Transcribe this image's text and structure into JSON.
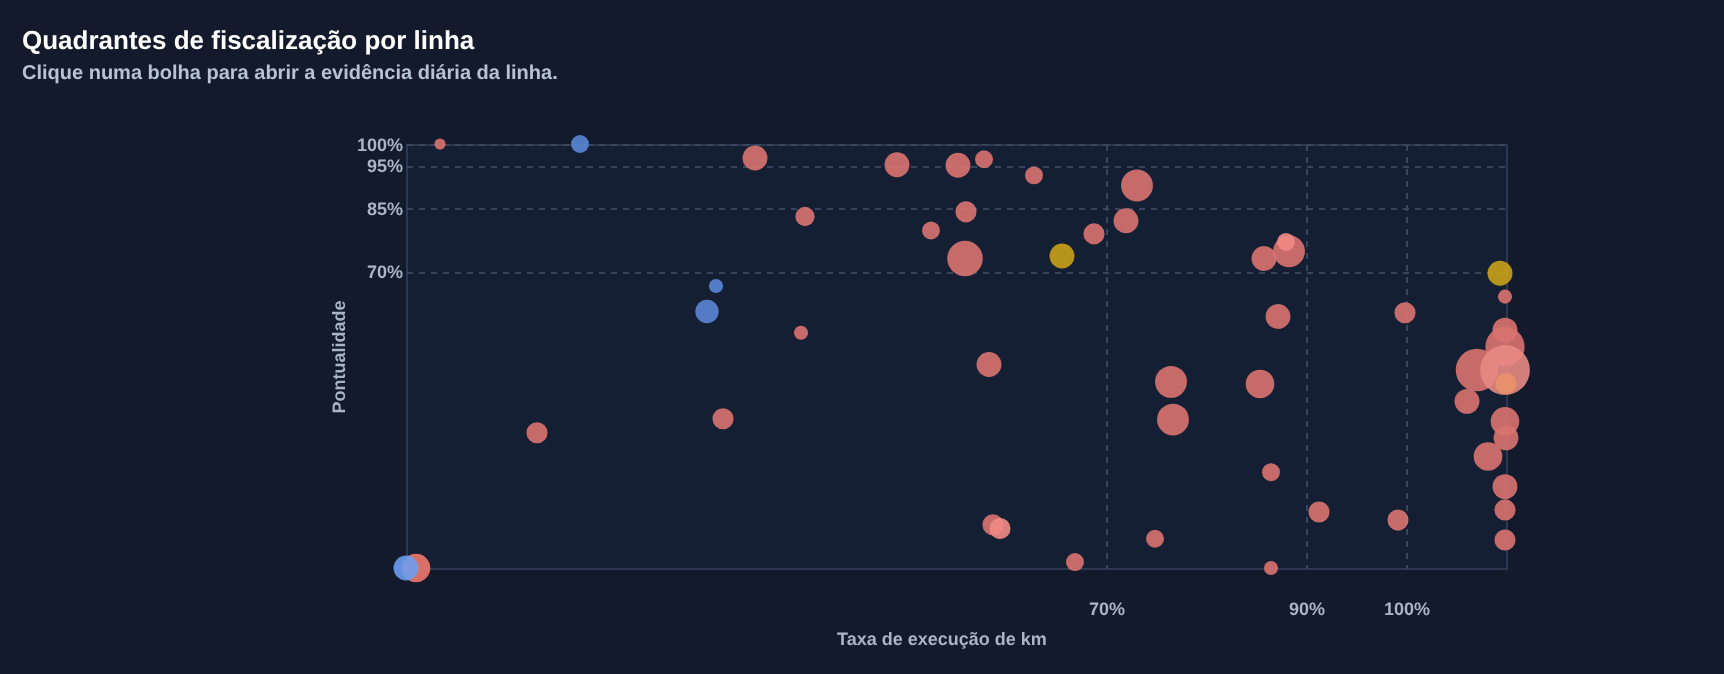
{
  "chart_data": {
    "type": "bubble",
    "title": "Quadrantes de fiscalização por linha",
    "subtitle": "Clique numa bolha para abrir a evidência diária da linha.",
    "xlabel": "Taxa de execução de km",
    "ylabel": "Pontualidade",
    "xlim": [
      0,
      110
    ],
    "ylim": [
      0,
      100
    ],
    "xticks": [
      {
        "value": 70,
        "label": "70%"
      },
      {
        "value": 90,
        "label": "90%"
      },
      {
        "value": 100,
        "label": "100%"
      }
    ],
    "yticks": [
      {
        "value": 70,
        "label": "70%"
      },
      {
        "value": 85,
        "label": "85%"
      },
      {
        "value": 95,
        "label": "95%"
      },
      {
        "value": 100,
        "label": "100%"
      }
    ],
    "grid": true,
    "x": [
      3.4,
      17.4,
      34.9,
      49.1,
      39.9,
      31,
      30.1,
      39.5,
      31.7,
      13.1,
      1,
      0,
      55.2,
      57.8,
      62.8,
      73.1,
      56,
      52.5,
      55.9,
      65.6,
      68.8,
      72,
      85.8,
      88.3,
      88,
      109.4,
      109.9,
      87.2,
      99.9,
      109.9,
      109.9,
      107.1,
      109.9,
      110,
      106.1,
      109.9,
      110,
      108.2,
      109.9,
      109.9,
      109.9,
      58.3,
      76.5,
      76.7,
      85.4,
      86.5,
      91.3,
      99.2,
      58.7,
      59.4,
      74.9,
      66.9,
      86.5
    ],
    "values": [
      100,
      100,
      96.7,
      95.1,
      82.9,
      66.5,
      60.5,
      55.5,
      35.2,
      31.9,
      0,
      0,
      95,
      96.4,
      92.6,
      90.2,
      84,
      79.6,
      73,
      73.6,
      78.8,
      81.9,
      73,
      74.7,
      76.9,
      69.5,
      64,
      59.3,
      60.2,
      56.1,
      52.2,
      46.7,
      46.7,
      43.5,
      39.3,
      34.6,
      30.7,
      26.3,
      19.2,
      13.7,
      6.6,
      48,
      43.9,
      35,
      43.4,
      22.6,
      13.2,
      11.3,
      10.2,
      9.3,
      6.9,
      1.4,
      0
    ],
    "sizes": [
      0.05,
      0.13,
      0.25,
      0.25,
      0.15,
      0.08,
      0.22,
      0.08,
      0.18,
      0.18,
      0.33,
      0.25,
      0.25,
      0.13,
      0.13,
      0.41,
      0.18,
      0.13,
      0.51,
      0.25,
      0.18,
      0.25,
      0.25,
      0.41,
      0.13,
      0.25,
      0.08,
      0.25,
      0.18,
      0.25,
      0.62,
      0.73,
      1,
      0.18,
      0.25,
      0.33,
      0.25,
      0.33,
      0.25,
      0.18,
      0.18,
      0.25,
      0.41,
      0.41,
      0.33,
      0.13,
      0.18,
      0.18,
      0.18,
      0.18,
      0.13,
      0.13,
      0.08
    ],
    "colors": [
      "#d9736f",
      "#5b86d6",
      "#d9736f",
      "#d9736f",
      "#d9736f",
      "#5b86d6",
      "#5b86d6",
      "#d9736f",
      "#d9736f",
      "#d9736f",
      "#f0786e",
      "#6d9df0",
      "#d9736f",
      "#d9736f",
      "#d9736f",
      "#d9736f",
      "#d9736f",
      "#d9736f",
      "#d9736f",
      "#c9a21b",
      "#d9736f",
      "#d9736f",
      "#d9736f",
      "#d9736f",
      "#f08a84",
      "#c9a21b",
      "#d9736f",
      "#d9736f",
      "#d9736f",
      "#d9736f",
      "#d9736f",
      "#d9736f",
      "#e88a84",
      "#e8946a",
      "#d9736f",
      "#d9736f",
      "#d9736f",
      "#d9736f",
      "#d9736f",
      "#d9736f",
      "#d9736f",
      "#d9736f",
      "#d9736f",
      "#d9736f",
      "#d9736f",
      "#d9736f",
      "#d9736f",
      "#d9736f",
      "#d9736f",
      "#f08a84",
      "#d9736f",
      "#d9736f",
      "#d9736f"
    ]
  }
}
